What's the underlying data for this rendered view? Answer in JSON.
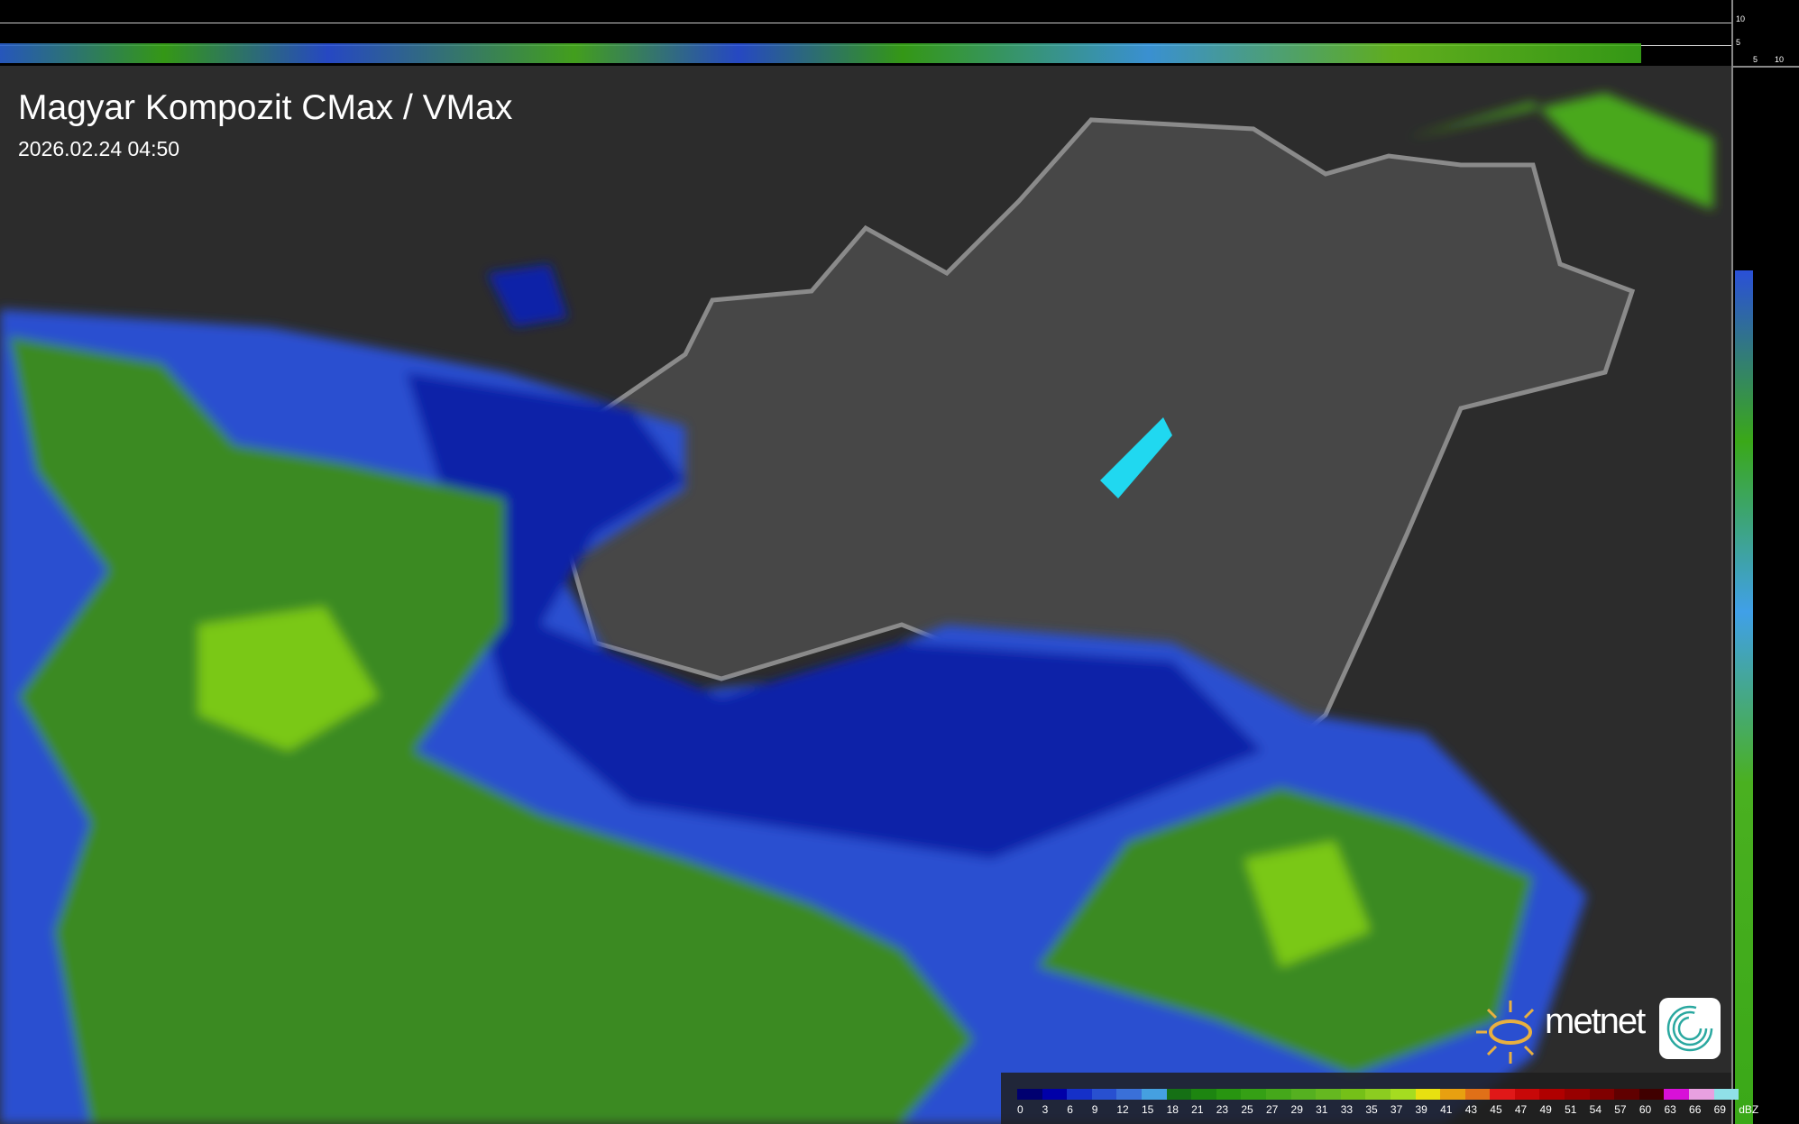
{
  "title": "Magyar Kompozit CMax / VMax",
  "timestamp": "2026.02.24 04:50",
  "profile_ticks": {
    "vertical": [
      "10",
      "5"
    ],
    "horizontal": [
      "5",
      "10"
    ]
  },
  "legend": {
    "unit": "dBZ",
    "labels": [
      "0",
      "3",
      "6",
      "9",
      "12",
      "15",
      "18",
      "21",
      "23",
      "25",
      "27",
      "29",
      "31",
      "33",
      "35",
      "37",
      "39",
      "41",
      "43",
      "45",
      "47",
      "49",
      "51",
      "54",
      "57",
      "60",
      "63",
      "66",
      "69"
    ],
    "colors": [
      "#000070",
      "#0000a8",
      "#1530c8",
      "#2850d0",
      "#3a70d8",
      "#45a0e0",
      "#157015",
      "#1d8510",
      "#289510",
      "#35a015",
      "#45a81a",
      "#55b020",
      "#65b820",
      "#75c018",
      "#8ccc20",
      "#a5dc20",
      "#e8e010",
      "#e8a010",
      "#e07018",
      "#e01818",
      "#c80808",
      "#b00000",
      "#980000",
      "#800000",
      "#600000",
      "#400000",
      "#d810d8",
      "#e8a0e0",
      "#90e0e8"
    ]
  },
  "brand": {
    "name": "metnet",
    "sun_color": "#e8b040",
    "icon_color": "#2aa8a0"
  }
}
